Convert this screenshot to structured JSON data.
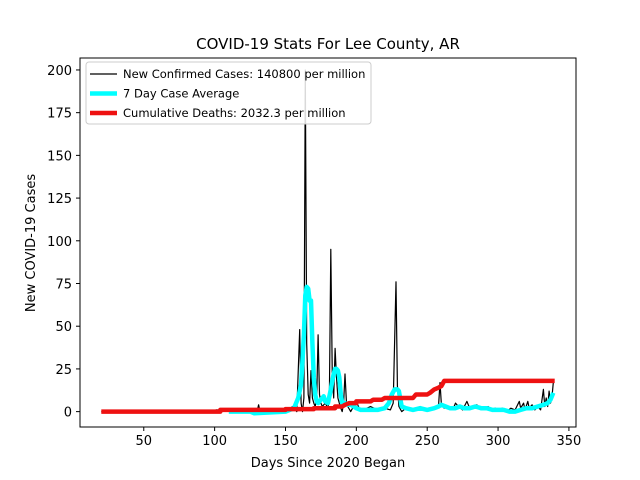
{
  "chart_data": {
    "type": "line",
    "title": "COVID-19 Stats For Lee County, AR",
    "xlabel": "Days Since 2020 Began",
    "ylabel": "New COVID-19 Cases",
    "xlim": [
      5,
      355
    ],
    "ylim": [
      -9,
      207
    ],
    "xticks": [
      50,
      100,
      150,
      200,
      250,
      300,
      350
    ],
    "yticks": [
      0,
      25,
      50,
      75,
      100,
      125,
      150,
      175,
      200
    ],
    "grid": false,
    "legend_position": "top-left",
    "series": [
      {
        "name": "New Confirmed Cases: 140800 per million",
        "color": "#000000",
        "points": [
          [
            20,
            0
          ],
          [
            100,
            0
          ],
          [
            101,
            1
          ],
          [
            130,
            0
          ],
          [
            131,
            4
          ],
          [
            132,
            0
          ],
          [
            150,
            0
          ],
          [
            155,
            3
          ],
          [
            158,
            0
          ],
          [
            160,
            48
          ],
          [
            161,
            5
          ],
          [
            162,
            0
          ],
          [
            163,
            8
          ],
          [
            164,
            200
          ],
          [
            165,
            40
          ],
          [
            166,
            10
          ],
          [
            167,
            5
          ],
          [
            168,
            24
          ],
          [
            169,
            8
          ],
          [
            170,
            5
          ],
          [
            171,
            3
          ],
          [
            172,
            8
          ],
          [
            173,
            45
          ],
          [
            174,
            10
          ],
          [
            175,
            5
          ],
          [
            176,
            3
          ],
          [
            178,
            5
          ],
          [
            180,
            2
          ],
          [
            181,
            10
          ],
          [
            182,
            95
          ],
          [
            183,
            20
          ],
          [
            184,
            8
          ],
          [
            185,
            37
          ],
          [
            186,
            20
          ],
          [
            187,
            8
          ],
          [
            188,
            5
          ],
          [
            189,
            2
          ],
          [
            190,
            0
          ],
          [
            191,
            5
          ],
          [
            192,
            22
          ],
          [
            193,
            6
          ],
          [
            194,
            3
          ],
          [
            196,
            0
          ],
          [
            198,
            3
          ],
          [
            200,
            6
          ],
          [
            202,
            2
          ],
          [
            205,
            1
          ],
          [
            210,
            3
          ],
          [
            215,
            1
          ],
          [
            220,
            2
          ],
          [
            224,
            1
          ],
          [
            226,
            5
          ],
          [
            228,
            76
          ],
          [
            229,
            15
          ],
          [
            230,
            3
          ],
          [
            232,
            0
          ],
          [
            235,
            2
          ],
          [
            240,
            1
          ],
          [
            245,
            3
          ],
          [
            250,
            1
          ],
          [
            255,
            2
          ],
          [
            258,
            3
          ],
          [
            259,
            17
          ],
          [
            260,
            4
          ],
          [
            262,
            2
          ],
          [
            265,
            3
          ],
          [
            268,
            1
          ],
          [
            270,
            5
          ],
          [
            272,
            3
          ],
          [
            275,
            1
          ],
          [
            278,
            6
          ],
          [
            280,
            2
          ],
          [
            285,
            4
          ],
          [
            288,
            1
          ],
          [
            290,
            2
          ],
          [
            293,
            3
          ],
          [
            295,
            1
          ],
          [
            298,
            2
          ],
          [
            300,
            1
          ],
          [
            303,
            2
          ],
          [
            306,
            0
          ],
          [
            309,
            2
          ],
          [
            312,
            1
          ],
          [
            315,
            6
          ],
          [
            316,
            2
          ],
          [
            318,
            5
          ],
          [
            319,
            1
          ],
          [
            321,
            6
          ],
          [
            322,
            2
          ],
          [
            324,
            4
          ],
          [
            326,
            1
          ],
          [
            328,
            3
          ],
          [
            330,
            1
          ],
          [
            332,
            13
          ],
          [
            333,
            3
          ],
          [
            334,
            8
          ],
          [
            335,
            3
          ],
          [
            336,
            12
          ],
          [
            337,
            5
          ],
          [
            338,
            8
          ],
          [
            339,
            17
          ]
        ],
        "line_width": 1.2
      },
      {
        "name": "7 Day Case Average",
        "color": "#00ffff",
        "points": [
          [
            110,
            0
          ],
          [
            125,
            0
          ],
          [
            128,
            -1
          ],
          [
            150,
            0
          ],
          [
            156,
            2
          ],
          [
            159,
            8
          ],
          [
            161,
            16
          ],
          [
            162,
            30
          ],
          [
            163,
            45
          ],
          [
            164,
            68
          ],
          [
            165,
            73
          ],
          [
            166,
            72
          ],
          [
            167,
            65
          ],
          [
            168,
            65
          ],
          [
            169,
            40
          ],
          [
            170,
            20
          ],
          [
            171,
            10
          ],
          [
            172,
            6
          ],
          [
            173,
            5
          ],
          [
            175,
            7
          ],
          [
            177,
            9
          ],
          [
            178,
            6
          ],
          [
            180,
            5
          ],
          [
            182,
            13
          ],
          [
            183,
            18
          ],
          [
            184,
            22
          ],
          [
            185,
            25
          ],
          [
            186,
            25
          ],
          [
            187,
            24
          ],
          [
            188,
            20
          ],
          [
            189,
            10
          ],
          [
            190,
            5
          ],
          [
            192,
            5
          ],
          [
            194,
            4
          ],
          [
            196,
            4
          ],
          [
            198,
            3
          ],
          [
            200,
            2
          ],
          [
            203,
            1
          ],
          [
            210,
            1
          ],
          [
            215,
            1
          ],
          [
            220,
            2
          ],
          [
            223,
            5
          ],
          [
            225,
            10
          ],
          [
            227,
            13
          ],
          [
            229,
            13
          ],
          [
            230,
            12
          ],
          [
            232,
            3
          ],
          [
            235,
            2
          ],
          [
            240,
            1
          ],
          [
            245,
            2
          ],
          [
            250,
            1
          ],
          [
            255,
            2
          ],
          [
            258,
            3
          ],
          [
            260,
            4
          ],
          [
            263,
            3
          ],
          [
            266,
            2
          ],
          [
            270,
            2
          ],
          [
            273,
            3
          ],
          [
            276,
            2
          ],
          [
            280,
            2
          ],
          [
            284,
            3
          ],
          [
            288,
            2
          ],
          [
            292,
            2
          ],
          [
            296,
            1
          ],
          [
            300,
            1
          ],
          [
            304,
            1
          ],
          [
            308,
            0
          ],
          [
            312,
            0
          ],
          [
            316,
            1
          ],
          [
            320,
            2
          ],
          [
            324,
            2
          ],
          [
            328,
            3
          ],
          [
            332,
            4
          ],
          [
            335,
            5
          ],
          [
            337,
            7
          ],
          [
            339,
            11
          ]
        ],
        "line_width": 4.5
      },
      {
        "name": "Cumulative Deaths: 2032.3 per million",
        "color": "#ee1111",
        "points": [
          [
            20,
            0
          ],
          [
            104,
            0
          ],
          [
            104,
            1
          ],
          [
            150,
            1
          ],
          [
            150,
            1.5
          ],
          [
            170,
            1.5
          ],
          [
            170,
            2
          ],
          [
            185,
            2
          ],
          [
            185,
            3
          ],
          [
            190,
            3
          ],
          [
            192,
            4
          ],
          [
            195,
            5
          ],
          [
            200,
            5
          ],
          [
            200,
            6
          ],
          [
            210,
            6
          ],
          [
            212,
            7
          ],
          [
            218,
            7
          ],
          [
            220,
            8
          ],
          [
            240,
            8
          ],
          [
            242,
            10
          ],
          [
            250,
            10
          ],
          [
            252,
            11
          ],
          [
            255,
            13
          ],
          [
            258,
            14
          ],
          [
            260,
            15
          ],
          [
            262,
            18
          ],
          [
            340,
            18
          ]
        ],
        "line_width": 4.5
      }
    ]
  }
}
